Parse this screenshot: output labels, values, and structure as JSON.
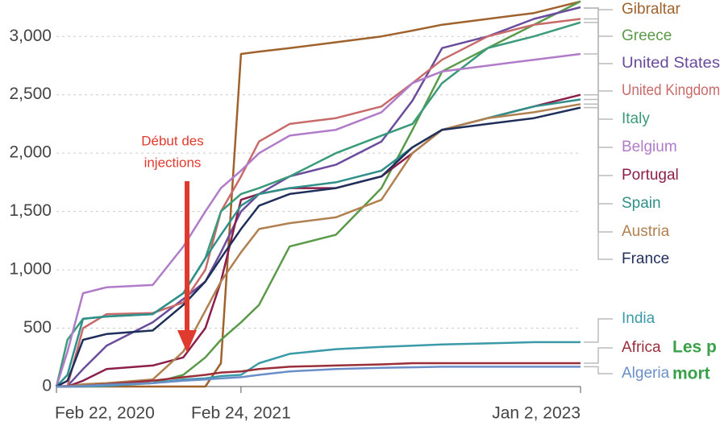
{
  "chart_data": {
    "type": "line",
    "annotations": {
      "injections": [
        "Début des",
        "injections"
      ],
      "side_text": [
        "Les p",
        "mort"
      ]
    },
    "x": [
      "2020-02-22",
      "2020-03-15",
      "2020-04-15",
      "2020-06-01",
      "2020-09-01",
      "2020-11-01",
      "2020-12-15",
      "2021-01-15",
      "2021-02-24",
      "2021-04-01",
      "2021-06-01",
      "2021-09-01",
      "2021-12-01",
      "2022-02-01",
      "2022-04-01",
      "2022-07-01",
      "2022-10-01",
      "2023-01-02"
    ],
    "xticks": [
      {
        "value": "2020-02-22",
        "label": "Feb 22, 2020"
      },
      {
        "value": "2021-02-24",
        "label": "Feb 24, 2021"
      },
      {
        "value": "2023-01-02",
        "label": "Jan 2, 2023"
      }
    ],
    "ylim": [
      0,
      3250
    ],
    "yticks": [
      0,
      {
        "value": 500,
        "label": "500"
      },
      {
        "value": 1000,
        "label": "1,000"
      },
      {
        "value": 1500,
        "label": "1,500"
      },
      {
        "value": 2000,
        "label": "2,000"
      },
      {
        "value": 2500,
        "label": "2,500"
      },
      {
        "value": 3000,
        "label": "3,000"
      }
    ],
    "grid": true,
    "series": [
      {
        "name": "Gibraltar",
        "color": "#a0622d",
        "values": [
          0,
          0,
          0,
          0,
          0,
          0,
          0,
          200,
          2850,
          2870,
          2900,
          2950,
          3000,
          3050,
          3100,
          3150,
          3200,
          3300
        ]
      },
      {
        "name": "Greece",
        "color": "#5a9a4a",
        "values": [
          0,
          0,
          10,
          20,
          30,
          100,
          250,
          400,
          550,
          700,
          1200,
          1300,
          1700,
          2200,
          2700,
          2900,
          3100,
          3300
        ]
      },
      {
        "name": "United States",
        "color": "#6a4c9c",
        "values": [
          0,
          5,
          150,
          350,
          550,
          750,
          900,
          1150,
          1500,
          1650,
          1800,
          1900,
          2100,
          2450,
          2900,
          3000,
          3150,
          3250
        ]
      },
      {
        "name": "United Kingdom",
        "color": "#c96a6a",
        "values": [
          0,
          5,
          500,
          620,
          630,
          720,
          1000,
          1500,
          1800,
          2100,
          2250,
          2300,
          2400,
          2600,
          2800,
          3000,
          3100,
          3150
        ]
      },
      {
        "name": "Italy",
        "color": "#3a9a7a",
        "values": [
          0,
          400,
          580,
          600,
          620,
          800,
          1100,
          1500,
          1650,
          1700,
          1800,
          2000,
          2150,
          2250,
          2600,
          2900,
          3000,
          3120
        ]
      },
      {
        "name": "Belgium",
        "color": "#b07bc8",
        "values": [
          0,
          300,
          800,
          850,
          870,
          1200,
          1500,
          1700,
          1850,
          2000,
          2150,
          2200,
          2350,
          2600,
          2700,
          2750,
          2800,
          2850
        ]
      },
      {
        "name": "Portugal",
        "color": "#8b1f4a",
        "values": [
          0,
          0,
          50,
          150,
          180,
          250,
          500,
          900,
          1600,
          1650,
          1700,
          1700,
          1800,
          2000,
          2200,
          2300,
          2400,
          2500
        ]
      },
      {
        "name": "Spain",
        "color": "#2f8f8a",
        "values": [
          0,
          100,
          580,
          600,
          620,
          800,
          1100,
          1300,
          1550,
          1650,
          1700,
          1750,
          1850,
          2050,
          2200,
          2300,
          2400,
          2460
        ]
      },
      {
        "name": "Austria",
        "color": "#b08050",
        "values": [
          0,
          0,
          20,
          30,
          60,
          300,
          650,
          900,
          1150,
          1350,
          1400,
          1450,
          1600,
          2000,
          2200,
          2300,
          2350,
          2420
        ]
      },
      {
        "name": "France",
        "color": "#1f2f5a",
        "values": [
          0,
          50,
          400,
          450,
          480,
          700,
          900,
          1100,
          1350,
          1550,
          1650,
          1700,
          1800,
          2050,
          2200,
          2250,
          2300,
          2390
        ]
      },
      {
        "name": "India",
        "color": "#3a9aa8",
        "values": [
          0,
          0,
          0,
          5,
          30,
          60,
          70,
          90,
          100,
          200,
          280,
          320,
          340,
          350,
          360,
          370,
          380,
          380
        ]
      },
      {
        "name": "Africa",
        "color": "#9a2f3a",
        "values": [
          0,
          0,
          5,
          20,
          50,
          80,
          100,
          120,
          130,
          150,
          170,
          180,
          190,
          200,
          200,
          200,
          200,
          200
        ]
      },
      {
        "name": "Algeria",
        "color": "#6a8fc8",
        "values": [
          0,
          0,
          5,
          15,
          30,
          50,
          60,
          70,
          80,
          100,
          130,
          150,
          160,
          165,
          170,
          170,
          170,
          170
        ]
      }
    ]
  }
}
